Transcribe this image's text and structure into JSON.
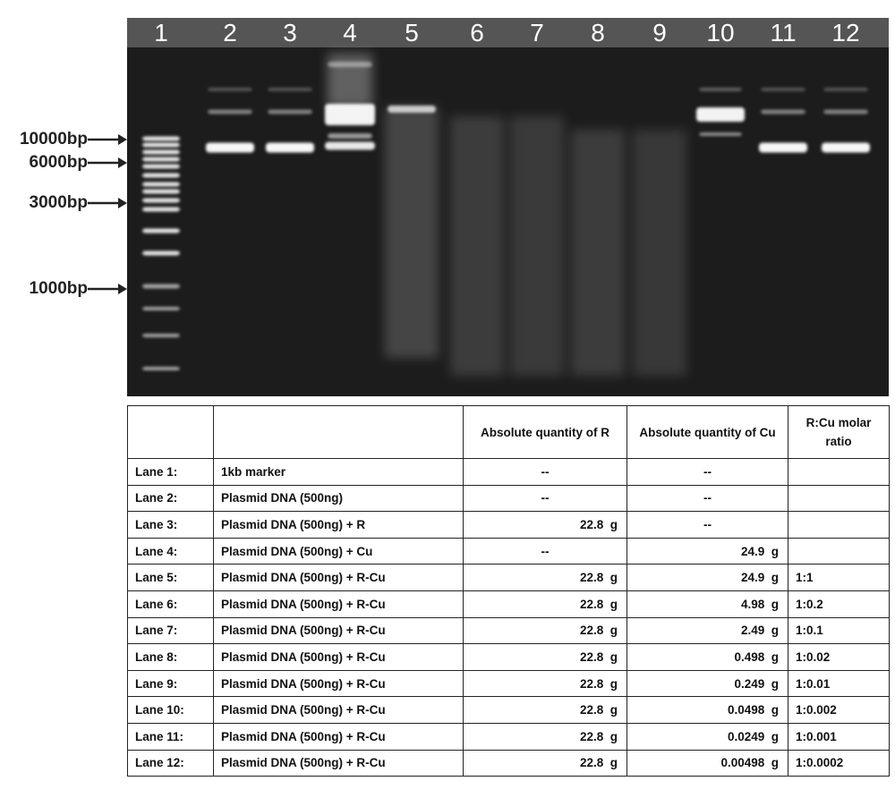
{
  "gel": {
    "lanes": [
      "1",
      "2",
      "3",
      "4",
      "5",
      "6",
      "7",
      "8",
      "9",
      "10",
      "11",
      "12"
    ],
    "markers": [
      "10000bp",
      "6000bp",
      "3000bp",
      "1000bp"
    ]
  },
  "table": {
    "header": {
      "r": "Absolute quantity of R",
      "cu": "Absolute quantity of Cu",
      "ratio": "R:Cu molar ratio"
    },
    "rows": [
      {
        "lane": "Lane 1:",
        "sample": "1kb marker",
        "r": "--",
        "cu": "--"
      },
      {
        "lane": "Lane 2:",
        "sample": "Plasmid DNA (500ng)",
        "r": "--",
        "cu": "--"
      },
      {
        "lane": "Lane 3:",
        "sample": "Plasmid DNA (500ng) + R",
        "r": "22.8  g",
        "cu": "--"
      },
      {
        "lane": "Lane 4:",
        "sample": "Plasmid DNA (500ng) + Cu",
        "r": "--",
        "cu": "24.9  g"
      },
      {
        "lane": "Lane 5:",
        "sample": "Plasmid DNA (500ng) + R-Cu",
        "r": "22.8  g",
        "cu": "24.9  g",
        "ratio": "1:1"
      },
      {
        "lane": "Lane 6:",
        "sample": "Plasmid DNA (500ng) + R-Cu",
        "r": "22.8  g",
        "cu": "4.98  g",
        "ratio": "1:0.2"
      },
      {
        "lane": "Lane 7:",
        "sample": "Plasmid DNA (500ng) + R-Cu",
        "r": "22.8  g",
        "cu": "2.49  g",
        "ratio": "1:0.1"
      },
      {
        "lane": "Lane 8:",
        "sample": "Plasmid DNA (500ng) + R-Cu",
        "r": "22.8  g",
        "cu": "0.498  g",
        "ratio": "1:0.02"
      },
      {
        "lane": "Lane 9:",
        "sample": "Plasmid DNA (500ng) + R-Cu",
        "r": "22.8  g",
        "cu": "0.249  g",
        "ratio": "1:0.01"
      },
      {
        "lane": "Lane 10:",
        "sample": "Plasmid DNA (500ng) + R-Cu",
        "r": "22.8  g",
        "cu": "0.0498  g",
        "ratio": "1:0.002"
      },
      {
        "lane": "Lane 11:",
        "sample": "Plasmid DNA (500ng) + R-Cu",
        "r": "22.8  g",
        "cu": "0.0249  g",
        "ratio": "1:0.001"
      },
      {
        "lane": "Lane 12:",
        "sample": "Plasmid DNA (500ng) + R-Cu",
        "r": "22.8  g",
        "cu": "0.00498  g",
        "ratio": "1:0.0002"
      }
    ]
  }
}
